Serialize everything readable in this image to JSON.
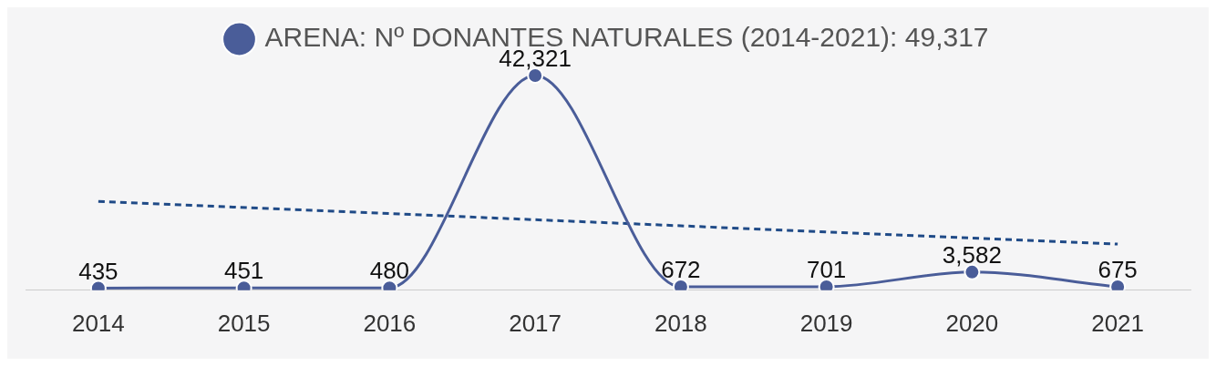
{
  "chart_data": {
    "type": "line",
    "categories": [
      "2014",
      "2015",
      "2016",
      "2017",
      "2018",
      "2019",
      "2020",
      "2021"
    ],
    "series": [
      {
        "name": "ARENA: Nº DONANTES NATURALES (2014-2021): 49,317",
        "color": "#4a5d99",
        "values": [
          435,
          451,
          480,
          42321,
          672,
          701,
          3582,
          675
        ],
        "value_labels": [
          "435",
          "451",
          "480",
          "42,321",
          "672",
          "701",
          "3,582",
          "675"
        ],
        "marker": "circle",
        "line_style": "solid"
      },
      {
        "type": "line",
        "color": "#1f4a87",
        "values": [
          17500,
          null,
          null,
          null,
          null,
          null,
          null,
          9100
        ],
        "marker": "none",
        "line_style": "dashed"
      }
    ],
    "tick_labels": "x",
    "grid": false,
    "legend": "top"
  }
}
